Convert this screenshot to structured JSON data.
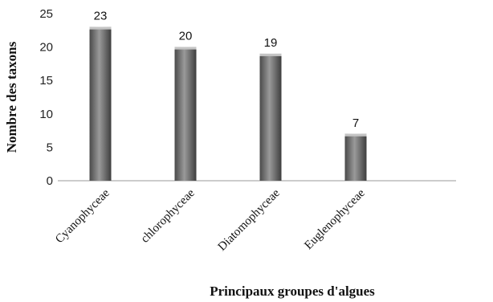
{
  "chart_data": {
    "type": "bar",
    "categories": [
      "Cyanophyceae",
      "chlorophyceae",
      "Diatomophyceae",
      "Euglenophyceae"
    ],
    "values": [
      23,
      20,
      19,
      7
    ],
    "title": "",
    "xlabel": "Principaux groupes d'algues",
    "ylabel": "Nombre des taxons",
    "ylim": [
      0,
      25
    ],
    "yticks": [
      0,
      5,
      10,
      15,
      20,
      25
    ],
    "grid": false,
    "legend": "none",
    "bar_color": "#7a7a7a"
  }
}
